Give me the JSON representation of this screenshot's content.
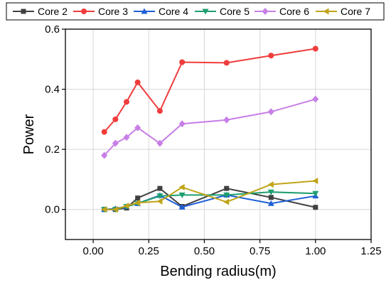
{
  "chart_data": {
    "type": "line",
    "title": "",
    "xlabel": "Bending radius(m)",
    "ylabel": "Power",
    "xlim": [
      -0.125,
      1.25
    ],
    "ylim": [
      -0.1,
      0.6
    ],
    "xticks": [
      0.0,
      0.25,
      0.5,
      0.75,
      1.0,
      1.25
    ],
    "xtick_labels": [
      "0.00",
      "0.25",
      "0.50",
      "0.75",
      "1.00",
      "1.25"
    ],
    "yticks": [
      0.0,
      0.2,
      0.4,
      0.6
    ],
    "ytick_labels": [
      "0.0",
      "0.2",
      "0.4",
      "0.6"
    ],
    "grid": true,
    "legend_position": "top",
    "x": [
      0.05,
      0.1,
      0.15,
      0.2,
      0.3,
      0.4,
      0.6,
      0.8,
      1.0
    ],
    "series": [
      {
        "name": "Core 2",
        "color": "#404040",
        "marker": "square",
        "values": [
          0.0,
          0.0,
          0.005,
          0.038,
          0.07,
          0.01,
          0.07,
          0.04,
          0.007
        ]
      },
      {
        "name": "Core 3",
        "color": "#f03c3c",
        "marker": "circle",
        "values": [
          0.258,
          0.3,
          0.358,
          0.423,
          0.328,
          0.49,
          0.488,
          0.512,
          0.535
        ]
      },
      {
        "name": "Core 4",
        "color": "#1f5fd6",
        "marker": "triangle-up",
        "values": [
          0.0,
          0.003,
          0.01,
          0.02,
          0.047,
          0.008,
          0.048,
          0.02,
          0.045
        ]
      },
      {
        "name": "Core 5",
        "color": "#1e9e6e",
        "marker": "triangle-down",
        "values": [
          0.0,
          0.0,
          0.01,
          0.02,
          0.045,
          0.048,
          0.048,
          0.058,
          0.053
        ]
      },
      {
        "name": "Core 6",
        "color": "#c77fe6",
        "marker": "diamond",
        "values": [
          0.18,
          0.22,
          0.24,
          0.272,
          0.22,
          0.285,
          0.298,
          0.325,
          0.367
        ]
      },
      {
        "name": "Core 7",
        "color": "#c0a419",
        "marker": "triangle-left",
        "values": [
          0.0,
          0.0,
          0.012,
          0.022,
          0.027,
          0.074,
          0.025,
          0.083,
          0.095
        ]
      }
    ]
  }
}
